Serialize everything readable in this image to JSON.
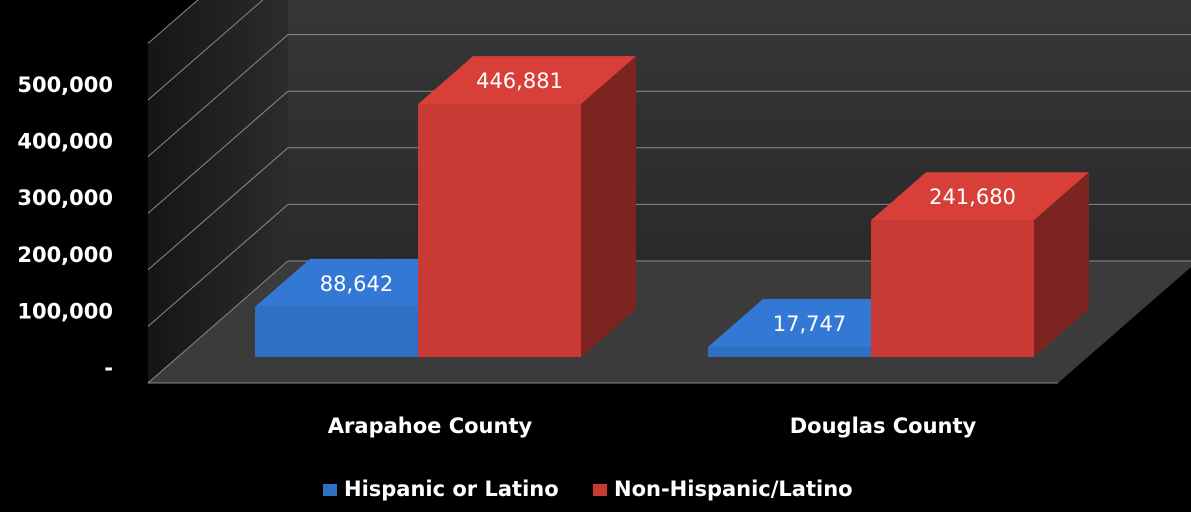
{
  "chart_data": {
    "type": "bar",
    "categories": [
      "Arapahoe County",
      "Douglas County"
    ],
    "series": [
      {
        "name": "Hispanic or Latino",
        "values": [
          88642,
          17747
        ],
        "color": "#2f6fc4"
      },
      {
        "name": "Non-Hispanic/Latino",
        "values": [
          446881,
          241680
        ],
        "color": "#c93a35"
      }
    ],
    "data_labels": [
      [
        "88,642",
        "17,747"
      ],
      [
        "446,881",
        "241,680"
      ]
    ],
    "y_ticks": [
      0,
      100000,
      200000,
      300000,
      400000,
      500000
    ],
    "y_tick_labels": [
      "-",
      "100,000",
      "200,000",
      "300,000",
      "400,000",
      "500,000"
    ],
    "ylim": [
      0,
      600000
    ],
    "title": "",
    "xlabel": "",
    "ylabel": "",
    "legend_position": "bottom",
    "grid": true,
    "style": "3d-clustered-column"
  }
}
